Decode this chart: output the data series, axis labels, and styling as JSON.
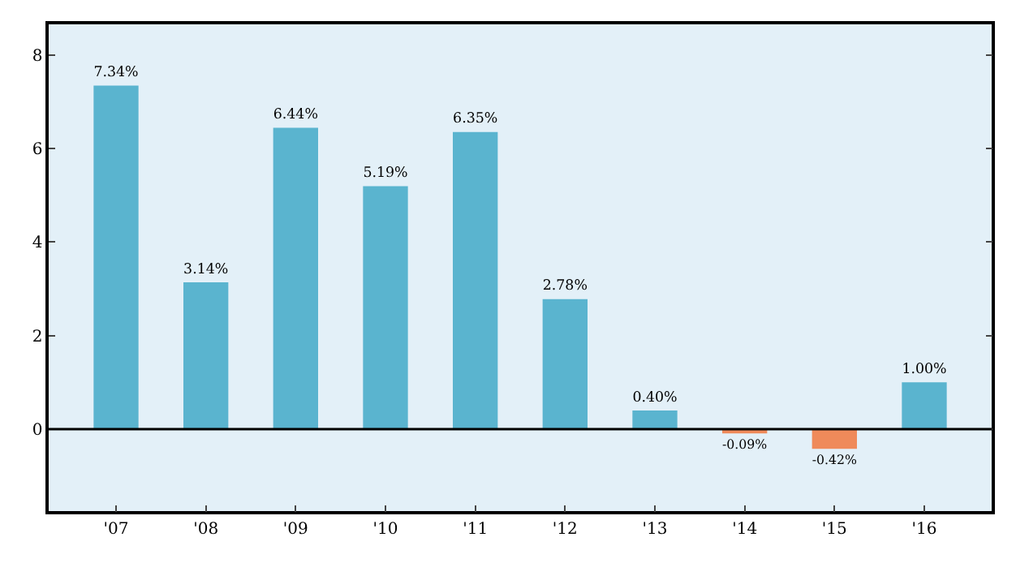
{
  "chart_data": {
    "type": "bar",
    "categories": [
      "'07",
      "'08",
      "'09",
      "'10",
      "'11",
      "'12",
      "'13",
      "'14",
      "'15",
      "'16"
    ],
    "values": [
      7.34,
      3.14,
      6.44,
      5.19,
      6.35,
      2.78,
      0.4,
      -0.09,
      -0.42,
      1.0
    ],
    "colors": [
      "#5ab4cf",
      "#5ab4cf",
      "#5ab4cf",
      "#5ab4cf",
      "#5ab4cf",
      "#5ab4cf",
      "#5ab4cf",
      "#ef8a5a",
      "#ef8a5a",
      "#5ab4cf"
    ],
    "value_labels": [
      "7.34%",
      "3.14%",
      "6.44%",
      "5.19%",
      "6.35%",
      "2.78%",
      "0.40%",
      "-0.09%",
      "-0.42%",
      "1.00%"
    ],
    "ylim": [
      -1.75,
      8.65
    ],
    "yticks": [
      0,
      2,
      4,
      6,
      8
    ],
    "ref_lines": [
      {
        "axis": "y",
        "value": 0,
        "color": "#000000"
      }
    ],
    "legend": false
  }
}
